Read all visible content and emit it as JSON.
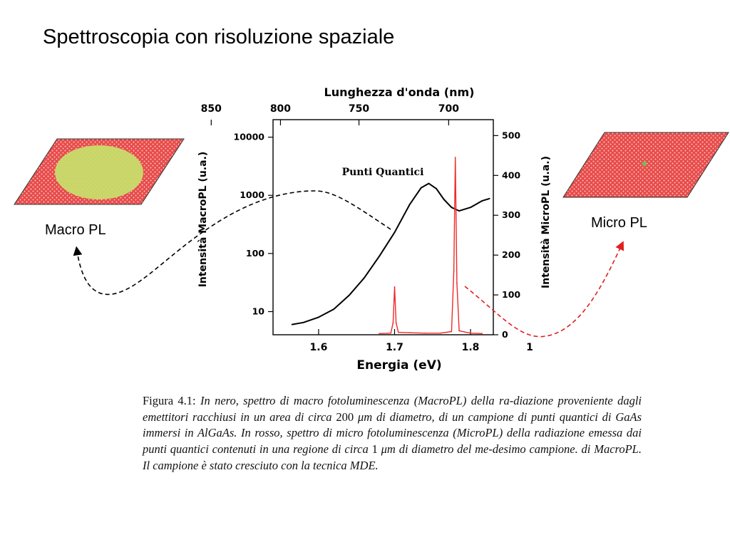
{
  "slide": {
    "title": "Spettroscopia con risoluzione spaziale"
  },
  "labels": {
    "macro": "Macro PL",
    "micro": "Micro PL"
  },
  "colors": {
    "macro_spectrum": "#000000",
    "micro_spectrum": "#ee2a2a",
    "sample_fill": "#e84b4b",
    "sample_dots": "#f6c8c0",
    "macro_spot": "#c8dc6a",
    "micro_spot": "#5ec84a",
    "arrow_macro": "#000000",
    "arrow_micro": "#e02020"
  },
  "chart_data": {
    "type": "line",
    "title": "",
    "annotation": "Punti Quantici",
    "xlabel": "Energia (eV)",
    "x_ticks": [
      "1.6",
      "1.7",
      "1.8"
    ],
    "xlim": [
      1.54,
      1.83
    ],
    "x_extra_tick": "1",
    "top_axis_label": "Lunghezza d'onda (nm)",
    "top_ticks": [
      "850",
      "800",
      "750",
      "700"
    ],
    "ylabel_left": "Intensità MacroPL (u.a.)",
    "left_ticks": [
      "10000",
      "1000",
      "100",
      "10"
    ],
    "left_scale": "log",
    "ylim_left": [
      4,
      20000
    ],
    "ylabel_right": "Intensità MicroPL (u.a.)",
    "right_ticks": [
      "500",
      "400",
      "300",
      "200",
      "100",
      "0"
    ],
    "ylim_right": [
      0,
      540
    ],
    "series": [
      {
        "name": "MacroPL",
        "axis": "left",
        "x": [
          1.565,
          1.58,
          1.6,
          1.62,
          1.64,
          1.66,
          1.68,
          1.7,
          1.72,
          1.735,
          1.745,
          1.755,
          1.765,
          1.775,
          1.785,
          1.8,
          1.815,
          1.825
        ],
        "y": [
          6,
          6.5,
          8,
          11,
          19,
          38,
          90,
          230,
          700,
          1350,
          1600,
          1300,
          850,
          620,
          540,
          620,
          800,
          880
        ]
      },
      {
        "name": "MicroPL",
        "axis": "right",
        "x": [
          1.68,
          1.695,
          1.698,
          1.7,
          1.702,
          1.705,
          1.72,
          1.74,
          1.76,
          1.775,
          1.778,
          1.78,
          1.782,
          1.785,
          1.8,
          1.815
        ],
        "y": [
          3,
          4,
          30,
          120,
          30,
          6,
          5,
          4,
          4,
          8,
          160,
          445,
          130,
          10,
          4,
          3
        ]
      }
    ]
  },
  "caption": {
    "prefix": "Figura 4.1: ",
    "body_1": "In nero, spettro di macro fotoluminescenza (MacroPL) della ra-diazione proveniente dagli emettitori racchiusi in un area di circa ",
    "val_1": "200",
    "unit_1": " μm ",
    "body_2": "di diametro, di un campione di punti quantici di GaAs immersi in AlGaAs. In rosso, spettro di micro fotoluminescenza (MicroPL) della radiazione emessa dai punti quantici contenuti in una regione di circa ",
    "val_2": "1",
    "unit_2": " μm ",
    "body_3": "di diametro del me-desimo campione. di MacroPL. Il campione è stato cresciuto con la tecnica MDE."
  }
}
